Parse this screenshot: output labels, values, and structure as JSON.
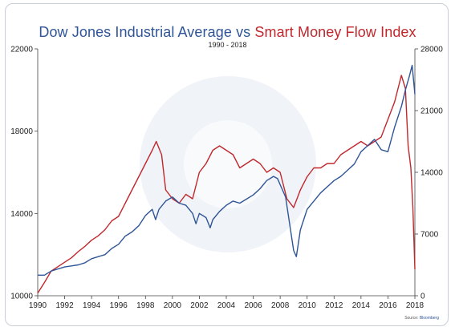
{
  "title": {
    "part1": "Dow Jones Industrial Average",
    "connector": "vs",
    "part2": "Smart Money Flow Index"
  },
  "subtitle": "1990 - 2018",
  "source": {
    "prefix": "Source:",
    "brand": "Bloomberg"
  },
  "colors": {
    "djia": "#2f5597",
    "smfi": "#c0282d"
  },
  "chart_data": {
    "type": "line",
    "title": "Dow Jones Industrial Average vs Smart Money Flow Index",
    "subtitle": "1990 - 2018",
    "grid": false,
    "x_ticks": [
      "1990",
      "1992",
      "1994",
      "1996",
      "1998",
      "2000",
      "2002",
      "2004",
      "2006",
      "2008",
      "2010",
      "2012",
      "2014",
      "2016",
      "2018"
    ],
    "xlim": [
      1990,
      2018
    ],
    "y_left": {
      "lim": [
        10000,
        22000
      ],
      "ticks": [
        "10000",
        "14000",
        "18000",
        "22000"
      ]
    },
    "y_right": {
      "lim": [
        0,
        28000
      ],
      "ticks": [
        "0",
        "7000",
        "14000",
        "21000",
        "28000"
      ]
    },
    "series": [
      {
        "name": "Dow Jones Industrial Average",
        "axis": "left",
        "color": "#2f5597",
        "x": [
          1990.0,
          1990.5,
          1991.0,
          1991.5,
          1992.0,
          1992.5,
          1993.0,
          1993.5,
          1994.0,
          1994.5,
          1995.0,
          1995.5,
          1996.0,
          1996.5,
          1997.0,
          1997.5,
          1998.0,
          1998.5,
          1998.75,
          1999.0,
          1999.5,
          2000.0,
          2000.5,
          2001.0,
          2001.5,
          2001.75,
          2002.0,
          2002.5,
          2002.8,
          2003.0,
          2003.5,
          2004.0,
          2004.5,
          2005.0,
          2005.5,
          2006.0,
          2006.5,
          2007.0,
          2007.5,
          2007.8,
          2008.0,
          2008.4,
          2008.7,
          2009.0,
          2009.2,
          2009.5,
          2010.0,
          2010.5,
          2011.0,
          2011.5,
          2012.0,
          2012.5,
          2013.0,
          2013.5,
          2014.0,
          2014.5,
          2015.0,
          2015.5,
          2016.0,
          2016.5,
          2017.0,
          2017.3,
          2017.6,
          2017.8,
          2018.0
        ],
        "values": [
          11000,
          11000,
          11200,
          11300,
          11400,
          11450,
          11500,
          11600,
          11800,
          11900,
          12000,
          12300,
          12500,
          12900,
          13100,
          13400,
          13900,
          14200,
          13700,
          14200,
          14600,
          14800,
          14500,
          14400,
          14000,
          13500,
          14000,
          13800,
          13300,
          13700,
          14100,
          14400,
          14600,
          14500,
          14700,
          14900,
          15200,
          15600,
          15800,
          15700,
          15400,
          14800,
          13500,
          12200,
          11900,
          13200,
          14200,
          14600,
          15000,
          15300,
          15600,
          15800,
          16100,
          16400,
          17000,
          17300,
          17600,
          17100,
          17000,
          18200,
          19200,
          20000,
          20700,
          21200,
          19800
        ]
      },
      {
        "name": "Smart Money Flow Index",
        "axis": "right",
        "color": "#c0282d",
        "x": [
          1990.0,
          1990.5,
          1991.0,
          1991.5,
          1992.0,
          1992.5,
          1993.0,
          1993.5,
          1994.0,
          1994.5,
          1995.0,
          1995.5,
          1996.0,
          1996.5,
          1997.0,
          1997.5,
          1998.0,
          1998.5,
          1998.8,
          1999.2,
          1999.5,
          2000.0,
          2000.5,
          2001.0,
          2001.5,
          2002.0,
          2002.5,
          2003.0,
          2003.5,
          2004.0,
          2004.5,
          2005.0,
          2005.5,
          2006.0,
          2006.5,
          2007.0,
          2007.5,
          2008.0,
          2008.5,
          2009.0,
          2009.5,
          2010.0,
          2010.5,
          2011.0,
          2011.5,
          2012.0,
          2012.5,
          2013.0,
          2013.5,
          2014.0,
          2014.5,
          2015.0,
          2015.5,
          2016.0,
          2016.5,
          2017.0,
          2017.3,
          2017.5,
          2017.7,
          2017.85,
          2018.0
        ],
        "values": [
          300,
          1500,
          2800,
          3300,
          3800,
          4300,
          5000,
          5600,
          6300,
          6800,
          7500,
          8500,
          9000,
          10500,
          12000,
          13500,
          15000,
          16500,
          17500,
          16000,
          12000,
          11000,
          10500,
          11500,
          11000,
          14000,
          15000,
          16500,
          17000,
          16500,
          16000,
          14500,
          15000,
          15500,
          15000,
          14000,
          14500,
          14000,
          11000,
          10000,
          12000,
          13500,
          14500,
          14500,
          15000,
          15000,
          16000,
          16500,
          17000,
          17500,
          17000,
          17500,
          18000,
          20000,
          22000,
          25000,
          23500,
          17000,
          14500,
          10000,
          3000
        ]
      }
    ],
    "annotations": []
  }
}
